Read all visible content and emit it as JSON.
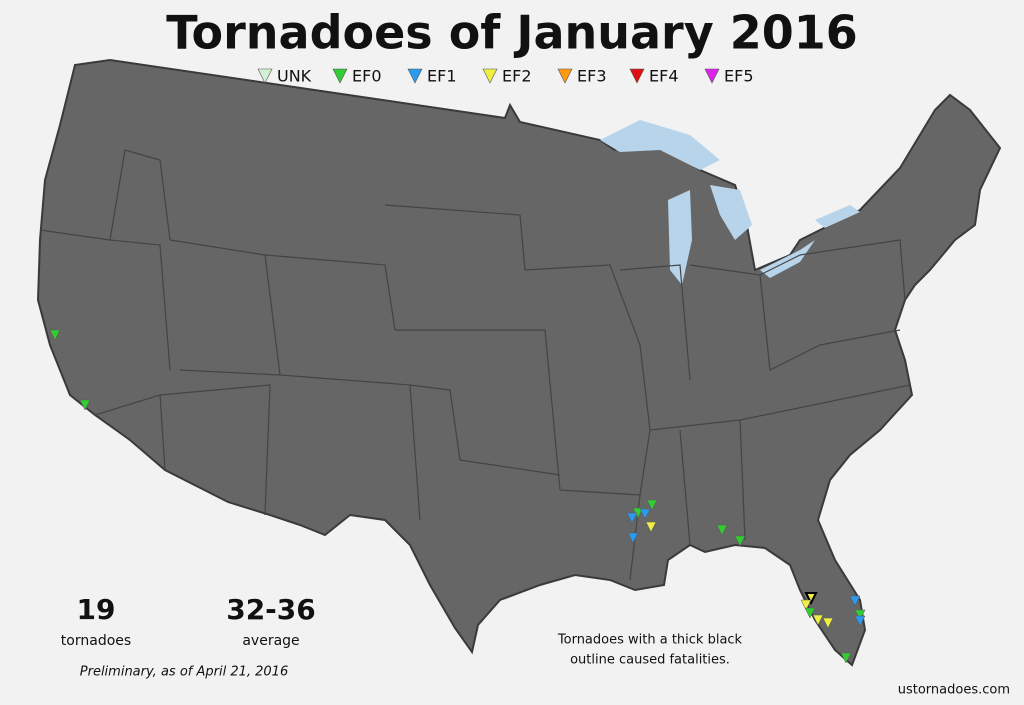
{
  "title": "Tornadoes of January 2016",
  "legend": [
    {
      "label": "UNK",
      "color": "#d4f0d4"
    },
    {
      "label": "EF0",
      "color": "#33cc33"
    },
    {
      "label": "EF1",
      "color": "#2b9bf0"
    },
    {
      "label": "EF2",
      "color": "#eeee44"
    },
    {
      "label": "EF3",
      "color": "#ff9911"
    },
    {
      "label": "EF4",
      "color": "#dd1111"
    },
    {
      "label": "EF5",
      "color": "#dd22ee"
    }
  ],
  "stats": {
    "count": "19",
    "count_label": "tornadoes",
    "average": "32-36",
    "average_label": "average"
  },
  "preliminary": "Preliminary, as of April 21, 2016",
  "note": [
    "Tornadoes with a thick black",
    "outline caused fatalities."
  ],
  "source": "ustornadoes.com"
}
